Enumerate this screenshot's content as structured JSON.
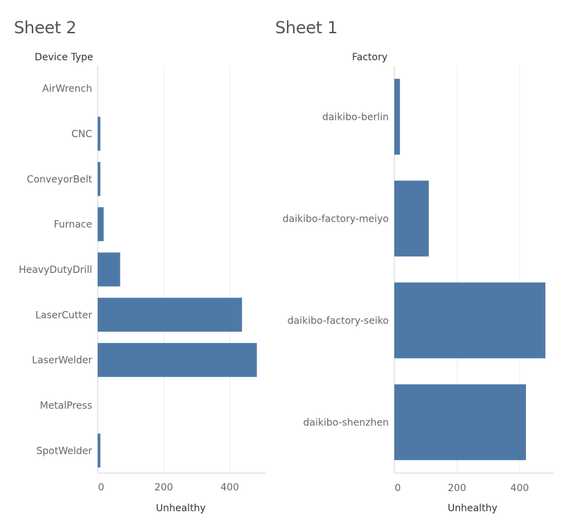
{
  "chart_data": [
    {
      "type": "bar",
      "orientation": "horizontal",
      "title": "Sheet 2",
      "category_header": "Device Type",
      "xlabel": "Unhealthy",
      "categories": [
        "AirWrench",
        "CNC",
        "ConveyorBelt",
        "Furnace",
        "HeavyDutyDrill",
        "LaserCutter",
        "LaserWelder",
        "MetalPress",
        "SpotWelder"
      ],
      "values": [
        0,
        8,
        8,
        18,
        68,
        437,
        482,
        0,
        8
      ],
      "xlim": [
        0,
        500
      ],
      "xticks": [
        "0",
        "200",
        "400"
      ],
      "grid": true,
      "color": "#4e79a7"
    },
    {
      "type": "bar",
      "orientation": "horizontal",
      "title": "Sheet 1",
      "category_header": "Factory",
      "xlabel": "Unhealthy",
      "categories": [
        "daikibo-berlin",
        "daikibo-factory-meiyo",
        "daikibo-factory-seiko",
        "daikibo-shenzhen"
      ],
      "values": [
        18,
        110,
        482,
        420
      ],
      "xlim": [
        0,
        500
      ],
      "xticks": [
        "0",
        "200",
        "400"
      ],
      "grid": true,
      "color": "#4e79a7"
    }
  ]
}
